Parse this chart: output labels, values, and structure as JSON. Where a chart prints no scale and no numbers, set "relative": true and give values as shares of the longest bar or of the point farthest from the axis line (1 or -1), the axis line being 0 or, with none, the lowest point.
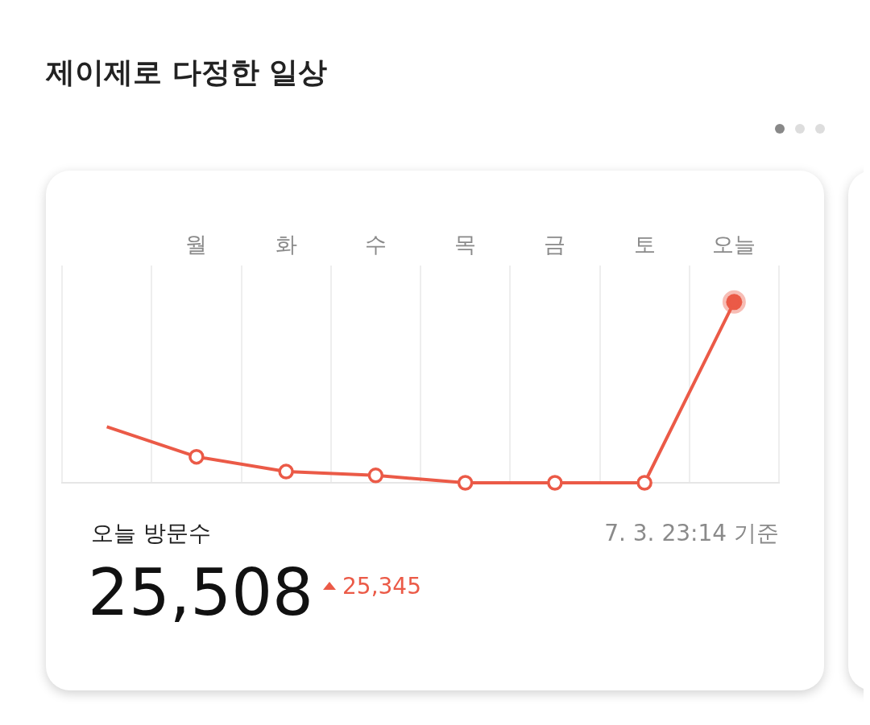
{
  "chart_data": {
    "type": "line",
    "title": "제이제로 다정한 일상",
    "relative": true,
    "categories": [
      null,
      "월",
      "화",
      "수",
      "목",
      "금",
      "토",
      "오늘"
    ],
    "series": [
      {
        "color": "#eb5a47",
        "values": [
          0.31,
          0.144,
          0.062,
          0.041,
          0,
          0,
          0,
          1
        ]
      }
    ],
    "marker": "circle",
    "line_style": "solid",
    "grid": "x",
    "annotations": [
      "오늘 방문수",
      "25,508",
      "25,345",
      "7. 3. 23:14 기준"
    ]
  }
}
